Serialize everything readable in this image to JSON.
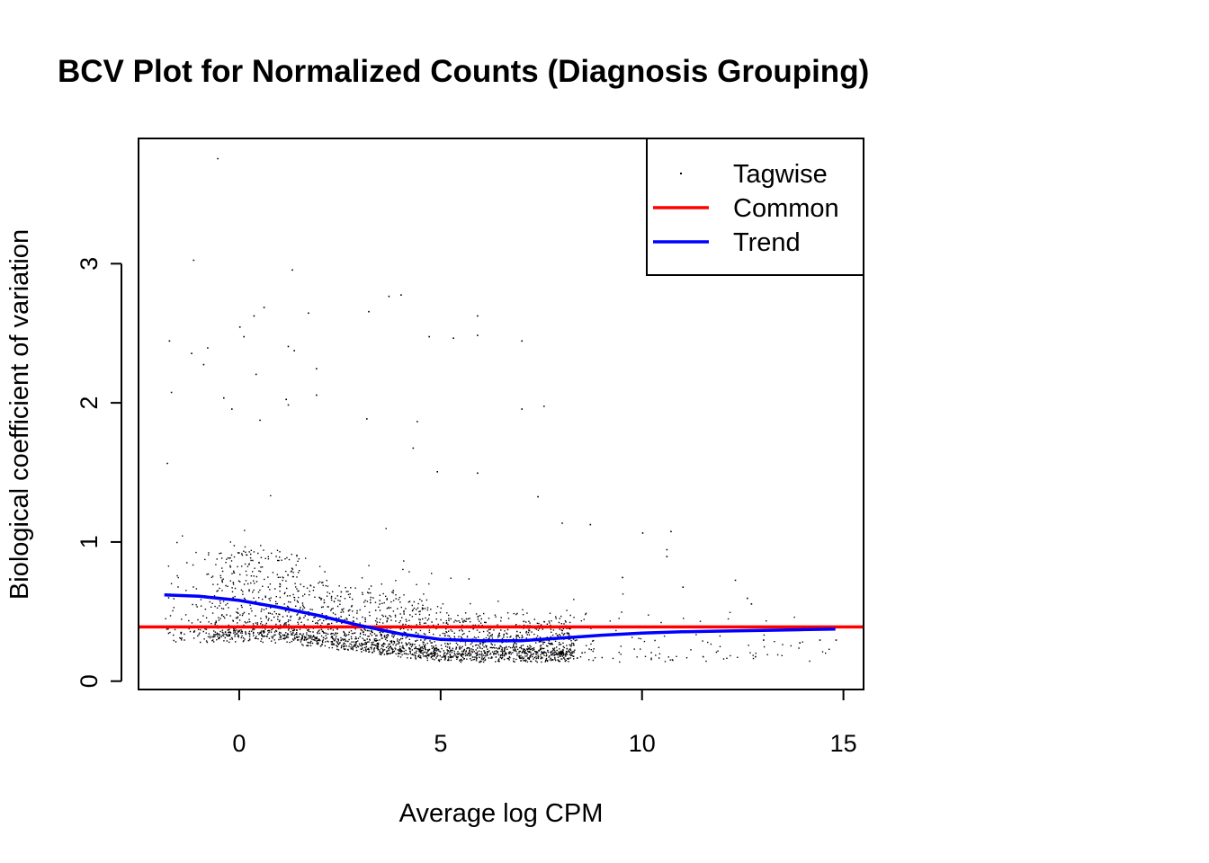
{
  "chart_data": {
    "type": "scatter",
    "title": "BCV Plot for Normalized Counts (Diagnosis Grouping)",
    "xlabel": "Average log CPM",
    "ylabel": "Biological coefficient of variation",
    "xlim": [
      -2.5,
      15.5
    ],
    "ylim": [
      -0.06,
      3.9
    ],
    "x_ticks": [
      0,
      5,
      10,
      15
    ],
    "y_ticks": [
      0,
      1,
      2,
      3
    ],
    "legend": {
      "position": "top-right",
      "entries": [
        {
          "label": "Tagwise",
          "style": "point",
          "color": "#000000"
        },
        {
          "label": "Common",
          "style": "line",
          "color": "#ff0000"
        },
        {
          "label": "Trend",
          "style": "line",
          "color": "#0000ff"
        }
      ]
    },
    "series": [
      {
        "name": "Common",
        "kind": "hline",
        "y": 0.39,
        "color": "#ff0000"
      },
      {
        "name": "Trend",
        "kind": "line",
        "color": "#0000ff",
        "x": [
          -1.86,
          -1.0,
          0.0,
          1.0,
          2.0,
          3.0,
          4.0,
          5.0,
          6.0,
          7.0,
          8.0,
          9.0,
          10.0,
          11.0,
          12.0,
          13.0,
          14.0,
          14.8
        ],
        "y": [
          0.62,
          0.61,
          0.58,
          0.53,
          0.47,
          0.4,
          0.34,
          0.3,
          0.29,
          0.29,
          0.31,
          0.33,
          0.345,
          0.355,
          0.36,
          0.365,
          0.37,
          0.375
        ]
      },
      {
        "name": "Tagwise",
        "kind": "points",
        "color": "#000000",
        "generated_count": 14000,
        "x_range": [
          -1.86,
          14.8
        ],
        "outliers": [
          [
            -0.55,
            3.76
          ],
          [
            -1.15,
            3.03
          ],
          [
            1.3,
            2.96
          ],
          [
            4.0,
            2.78
          ],
          [
            3.7,
            2.77
          ],
          [
            3.2,
            2.66
          ],
          [
            5.9,
            2.63
          ],
          [
            0.6,
            2.69
          ],
          [
            0.35,
            2.63
          ],
          [
            1.7,
            2.65
          ],
          [
            -1.75,
            2.45
          ],
          [
            -1.2,
            2.36
          ],
          [
            -0.8,
            2.4
          ],
          [
            -0.9,
            2.28
          ],
          [
            0.0,
            2.55
          ],
          [
            0.1,
            2.48
          ],
          [
            1.2,
            2.41
          ],
          [
            1.35,
            2.38
          ],
          [
            7.0,
            2.45
          ],
          [
            5.3,
            2.47
          ],
          [
            4.7,
            2.48
          ],
          [
            5.9,
            2.49
          ],
          [
            0.4,
            2.21
          ],
          [
            1.9,
            2.25
          ],
          [
            -1.7,
            2.08
          ],
          [
            1.15,
            2.03
          ],
          [
            1.2,
            1.99
          ],
          [
            -0.4,
            2.04
          ],
          [
            1.9,
            2.06
          ],
          [
            3.15,
            1.89
          ],
          [
            4.4,
            1.87
          ],
          [
            7.0,
            1.96
          ],
          [
            7.55,
            1.98
          ],
          [
            -0.2,
            1.96
          ],
          [
            0.5,
            1.88
          ],
          [
            -1.8,
            1.57
          ],
          [
            4.3,
            1.68
          ],
          [
            5.9,
            1.5
          ],
          [
            4.9,
            1.51
          ],
          [
            7.4,
            1.33
          ],
          [
            8.0,
            1.14
          ],
          [
            8.7,
            1.13
          ],
          [
            10.0,
            1.07
          ],
          [
            10.7,
            1.08
          ],
          [
            10.6,
            0.95
          ],
          [
            12.3,
            0.73
          ],
          [
            12.6,
            0.6
          ],
          [
            12.7,
            0.56
          ],
          [
            13.0,
            0.3
          ],
          [
            13.9,
            0.28
          ],
          [
            14.4,
            0.3
          ],
          [
            14.8,
            0.3
          ],
          [
            11.5,
            0.18
          ],
          [
            12.8,
            0.18
          ],
          [
            10.6,
            0.9
          ],
          [
            9.5,
            0.75
          ],
          [
            11.0,
            0.68
          ]
        ]
      }
    ]
  }
}
